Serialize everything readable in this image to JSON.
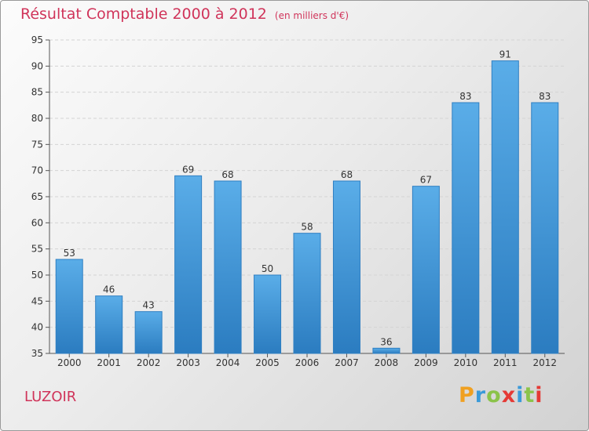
{
  "title": "Résultat Comptable 2000 à 2012",
  "subtitle": "(en milliers d'€)",
  "commune": "LUZOIR",
  "logo": {
    "letters": [
      "P",
      "r",
      "o",
      "x",
      "i",
      "t",
      "i"
    ],
    "colors": [
      "#f0a020",
      "#3a9ad9",
      "#8bc34a",
      "#e53935",
      "#3a9ad9",
      "#8bc34a",
      "#e53935"
    ]
  },
  "colors": {
    "accent": "#d0345a",
    "bar_top": "#5aade8",
    "bar_bottom": "#2b7cc0"
  },
  "chart_data": {
    "type": "bar",
    "title": "Résultat Comptable 2000 à 2012",
    "xlabel": "",
    "ylabel": "",
    "categories": [
      "2000",
      "2001",
      "2002",
      "2003",
      "2004",
      "2005",
      "2006",
      "2007",
      "2008",
      "2009",
      "2010",
      "2011",
      "2012"
    ],
    "values": [
      53,
      46,
      43,
      69,
      68,
      50,
      58,
      68,
      36,
      67,
      83,
      91,
      83
    ],
    "ylim": [
      35,
      95
    ],
    "yticks": [
      35,
      40,
      45,
      50,
      55,
      60,
      65,
      70,
      75,
      80,
      85,
      90,
      95
    ],
    "grid": true
  }
}
